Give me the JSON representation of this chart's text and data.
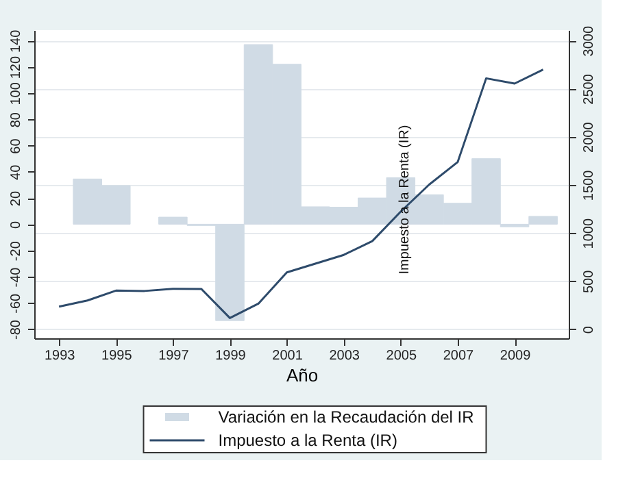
{
  "chart_data": {
    "type": "bar",
    "xlabel": "Año",
    "x": [
      1993,
      1994,
      1995,
      1996,
      1997,
      1998,
      1999,
      2000,
      2001,
      2002,
      2003,
      2004,
      2005,
      2006,
      2007,
      2008,
      2009,
      2010
    ],
    "series": [
      {
        "name": "Variación en la Recaudación del IR",
        "color": "#d0dbe5",
        "x": [
          1994,
          1995,
          1997,
          1998,
          1999,
          2000,
          2001,
          2002,
          2003,
          2004,
          2005,
          2006,
          2007,
          2008,
          2009,
          2010
        ],
        "values": [
          34.5,
          29.5,
          5.4,
          -1,
          -73.5,
          137,
          122,
          13.3,
          13,
          20,
          35.5,
          22.5,
          16,
          50,
          -2,
          6
        ]
      },
      {
        "name": "Impuesto a la Renta (IR)",
        "type": "line",
        "axis": "y2",
        "color": "#2e4b6b",
        "values": [
          234,
          298,
          401,
          397,
          420,
          418,
          116,
          265,
          590,
          681,
          772,
          915,
          1222,
          1503,
          1737,
          2607,
          2553,
          2698
        ]
      }
    ],
    "xlim": [
      1992.13,
      2010.9
    ],
    "xticks": [
      1993,
      1995,
      1997,
      1999,
      2001,
      2003,
      2005,
      2007,
      2009
    ],
    "ylim": [
      -87,
      148
    ],
    "yticks": [
      -80,
      -60,
      -40,
      -20,
      0,
      20,
      40,
      60,
      80,
      100,
      120,
      140
    ],
    "y2lim": [
      -95,
      3108
    ],
    "y2ticks": [
      0,
      500,
      1000,
      1500,
      2000,
      2500,
      3000
    ],
    "grid": "y",
    "legend": "bottom",
    "annotations": [
      "Impuesto a la Renta (IR)"
    ]
  }
}
